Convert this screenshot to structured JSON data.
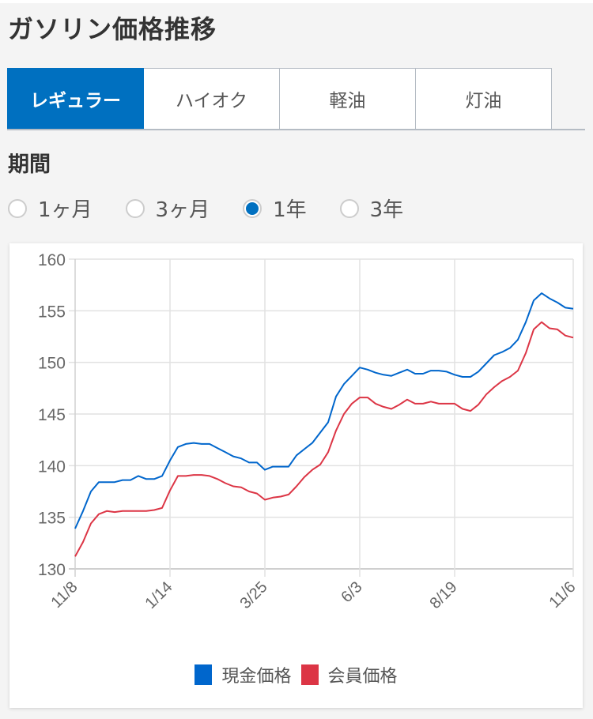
{
  "header": {
    "title": "ガソリン価格推移"
  },
  "tabs": [
    {
      "label": "レギュラー",
      "active": true
    },
    {
      "label": "ハイオク",
      "active": false
    },
    {
      "label": "軽油",
      "active": false
    },
    {
      "label": "灯油",
      "active": false
    }
  ],
  "period": {
    "label": "期間",
    "options": [
      {
        "label": "1ヶ月",
        "checked": false
      },
      {
        "label": "3ヶ月",
        "checked": false
      },
      {
        "label": "1年",
        "checked": true
      },
      {
        "label": "3年",
        "checked": false
      }
    ]
  },
  "colors": {
    "accent": "#0070c0",
    "cash": "#0066cc",
    "member": "#dc3545",
    "grid": "#e0e0e0",
    "axis_text": "#666666"
  },
  "chart_data": {
    "type": "line",
    "title": "",
    "xlabel": "",
    "ylabel": "",
    "ylim": [
      130,
      160
    ],
    "yticks": [
      130,
      135,
      140,
      145,
      150,
      155,
      160
    ],
    "xtick_labels": [
      "11/8",
      "1/14",
      "3/25",
      "6/3",
      "8/19",
      "11/6"
    ],
    "xtick_index": [
      0,
      12,
      24,
      36,
      48,
      63
    ],
    "grid": true,
    "legend_position": "bottom",
    "series": [
      {
        "name": "現金価格",
        "color": "#0066cc",
        "values": [
          133.9,
          135.6,
          137.5,
          138.4,
          138.4,
          138.4,
          138.6,
          138.6,
          139.0,
          138.7,
          138.7,
          139.0,
          140.5,
          141.8,
          142.1,
          142.2,
          142.1,
          142.1,
          141.7,
          141.3,
          140.9,
          140.7,
          140.3,
          140.3,
          139.6,
          139.9,
          139.9,
          139.9,
          141.0,
          141.6,
          142.2,
          143.2,
          144.2,
          146.7,
          147.9,
          148.7,
          149.5,
          149.3,
          149.0,
          148.8,
          148.7,
          149.0,
          149.3,
          148.9,
          148.9,
          149.2,
          149.2,
          149.1,
          148.8,
          148.6,
          148.6,
          149.1,
          149.9,
          150.7,
          151.0,
          151.4,
          152.2,
          153.9,
          156.0,
          156.7,
          156.2,
          155.8,
          155.3,
          155.2
        ]
      },
      {
        "name": "会員価格",
        "color": "#dc3545",
        "values": [
          131.2,
          132.6,
          134.4,
          135.3,
          135.6,
          135.5,
          135.6,
          135.6,
          135.6,
          135.6,
          135.7,
          135.9,
          137.6,
          139.0,
          139.0,
          139.1,
          139.1,
          139.0,
          138.7,
          138.3,
          138.0,
          137.9,
          137.5,
          137.3,
          136.7,
          136.9,
          137.0,
          137.2,
          138.0,
          138.9,
          139.6,
          140.1,
          141.3,
          143.4,
          145.0,
          146.0,
          146.6,
          146.6,
          146.0,
          145.7,
          145.5,
          145.9,
          146.4,
          146.0,
          146.0,
          146.2,
          146.0,
          146.0,
          146.0,
          145.5,
          145.3,
          145.9,
          146.9,
          147.6,
          148.2,
          148.6,
          149.2,
          150.9,
          153.2,
          153.9,
          153.3,
          153.2,
          152.6,
          152.4
        ]
      }
    ]
  },
  "legend": [
    {
      "label": "現金価格",
      "color": "#0066cc"
    },
    {
      "label": "会員価格",
      "color": "#dc3545"
    }
  ]
}
